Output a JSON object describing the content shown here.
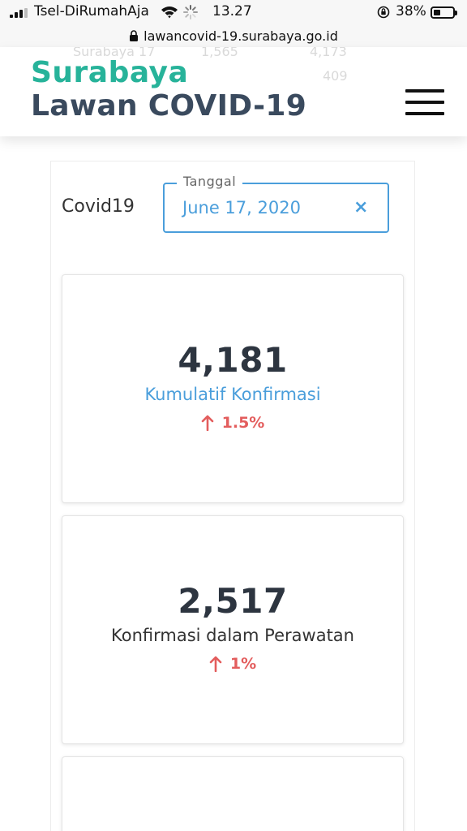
{
  "status_bar": {
    "carrier": "Tsel-DiRumahAja",
    "time": "13.27",
    "battery_percent": "38%",
    "battery_level": 0.38
  },
  "browser": {
    "url": "lawancovid-19.surabaya.go.id"
  },
  "header": {
    "logo_line1": "Surabaya",
    "logo_line2": "Lawan COVID-19",
    "ghost_text_1": "Surabaya 17",
    "ghost_text_2": "1,565",
    "ghost_text_3": "4,173",
    "ghost_text_4": "409"
  },
  "filter": {
    "label": "Covid19",
    "date_legend": "Tanggal",
    "date_value": "June 17, 2020",
    "clear_symbol": "×"
  },
  "cards": [
    {
      "value": "4,181",
      "label": "Kumulatif Konfirmasi",
      "change": "1.5%",
      "label_color": "#4a9edb"
    },
    {
      "value": "2,517",
      "label": "Konfirmasi dalam Perawatan",
      "change": "1%",
      "label_color": "#333333"
    }
  ],
  "colors": {
    "brand_green": "#27b39a",
    "brand_navy": "#3a4a5e",
    "accent_blue": "#4a9edb",
    "increase_red": "#e35d5d"
  }
}
